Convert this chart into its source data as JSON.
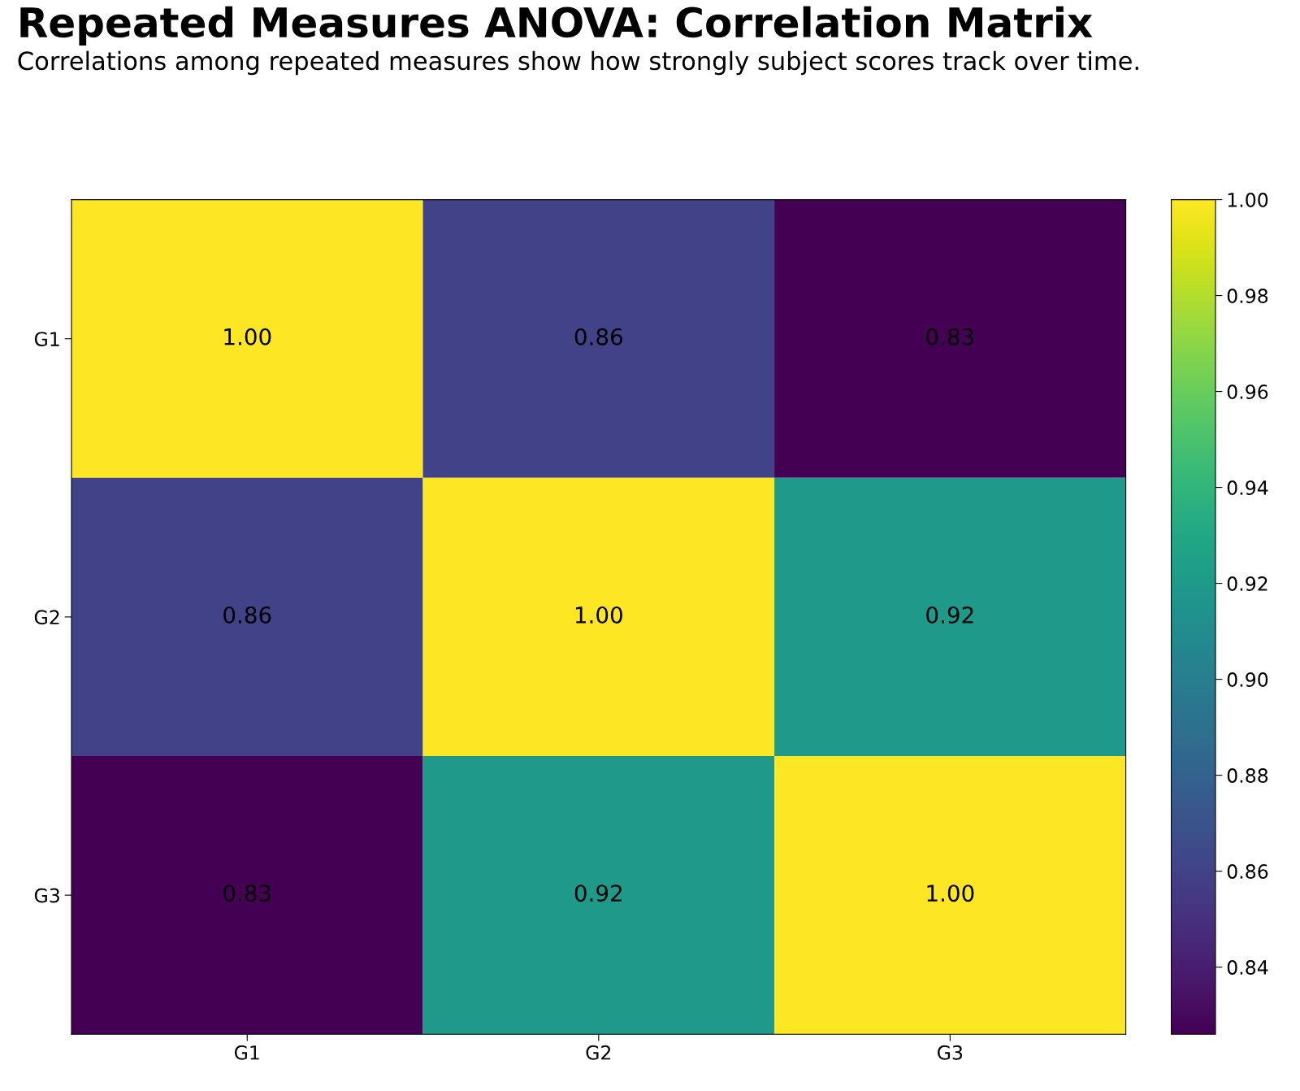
{
  "chart_data": {
    "type": "heatmap",
    "title": "Repeated Measures ANOVA: Correlation Matrix",
    "subtitle": "Correlations among repeated measures show how strongly subject scores track over time.",
    "categories": [
      "G1",
      "G2",
      "G3"
    ],
    "y_categories": [
      "G1",
      "G2",
      "G3"
    ],
    "cells": [
      [
        1.0,
        0.86,
        0.826
      ],
      [
        0.86,
        1.0,
        0.92
      ],
      [
        0.826,
        0.92,
        1.0
      ]
    ],
    "cell_labels": [
      [
        "1.00",
        "0.86",
        "0.83"
      ],
      [
        "0.86",
        "1.00",
        "0.92"
      ],
      [
        "0.83",
        "0.92",
        "1.00"
      ]
    ],
    "clim": [
      0.826,
      1.0
    ],
    "cticks": [
      {
        "value": 0.84,
        "label": "0.84"
      },
      {
        "value": 0.86,
        "label": "0.86"
      },
      {
        "value": 0.88,
        "label": "0.88"
      },
      {
        "value": 0.9,
        "label": "0.90"
      },
      {
        "value": 0.92,
        "label": "0.92"
      },
      {
        "value": 0.94,
        "label": "0.94"
      },
      {
        "value": 0.96,
        "label": "0.96"
      },
      {
        "value": 0.98,
        "label": "0.98"
      },
      {
        "value": 1.0,
        "label": "1.00"
      }
    ]
  }
}
